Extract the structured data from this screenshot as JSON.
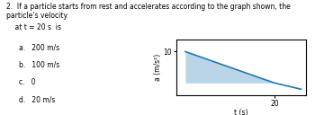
{
  "chart_data": {
    "type": "line",
    "title": "2.  If a particle starts from rest and accelerates according to the graph shown, the particle’s velocity",
    "subtitle": "    at t = 20 s  is",
    "annotations": [
      "a.   200 m/s",
      "b.   100 m/s",
      "c.   0",
      "d.   20 m/s"
    ],
    "x_label": "t (s)",
    "y_label": "a (m/s²)",
    "series": [
      {
        "type": "area",
        "x": [
          0,
          20
        ],
        "values": [
          10,
          0
        ]
      },
      {
        "type": "line",
        "x": [
          0,
          20,
          26
        ],
        "values": [
          10,
          0,
          -2.0
        ]
      }
    ],
    "xlim": [
      -2,
      27
    ],
    "ylim": [
      -4,
      14
    ],
    "xticks": [
      20
    ],
    "yticks": [
      10
    ],
    "grid": false
  }
}
